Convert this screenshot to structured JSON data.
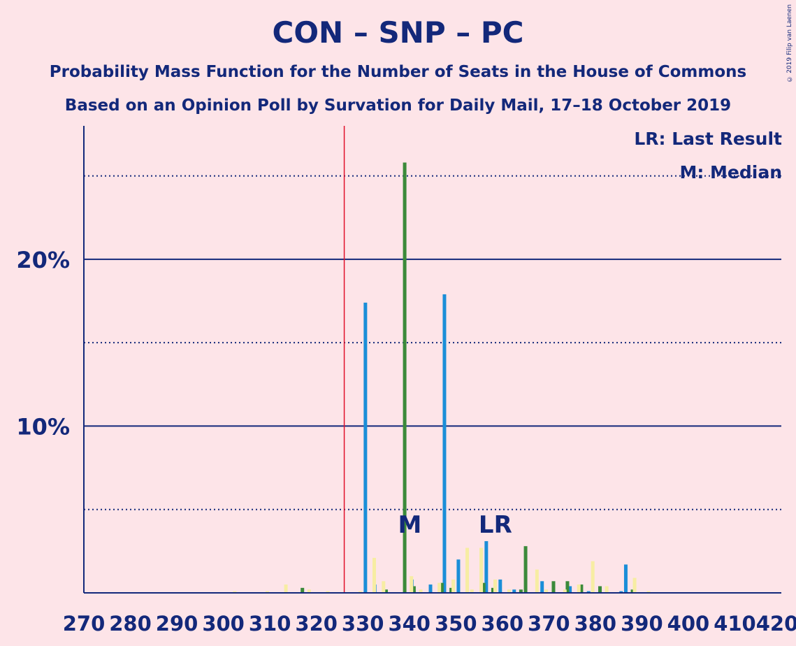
{
  "title": "CON – SNP – PC",
  "subtitle1": "Probability Mass Function for the Number of Seats in the House of Commons",
  "subtitle2": "Based on an Opinion Poll by Survation for Daily Mail, 17–18 October 2019",
  "copyright": "© 2019 Filip van Laenen",
  "legend": {
    "last_result": "LR: Last Result",
    "median": "M: Median"
  },
  "colors": {
    "background": "#fde4e8",
    "axis": "#13287a",
    "majority_line": "#e0102a",
    "blue": "#1a8ed8",
    "green": "#3b8a3a",
    "yellow": "#f7eda3"
  },
  "chart_data": {
    "type": "bar",
    "xlabel": "",
    "ylabel": "",
    "xlim": [
      270,
      420
    ],
    "ylim": [
      0,
      28
    ],
    "x_ticks": [
      270,
      280,
      290,
      300,
      310,
      320,
      330,
      340,
      350,
      360,
      370,
      380,
      390,
      400,
      410,
      420
    ],
    "y_ticks_labeled": [
      {
        "value": 10,
        "label": "10%"
      },
      {
        "value": 20,
        "label": "20%"
      }
    ],
    "y_gridlines_dotted": [
      5,
      15,
      25
    ],
    "y_gridlines_solid": [
      10,
      20
    ],
    "majority_line_x": 326,
    "annotations": [
      {
        "label": "M",
        "x": 338
      },
      {
        "label": "LR",
        "x": 357
      }
    ],
    "series": [
      {
        "name": "",
        "color": "blue",
        "points": [
          [
            331,
            17.4
          ],
          [
            333,
            0.5
          ],
          [
            341,
            0.8
          ],
          [
            345,
            0.5
          ],
          [
            348,
            17.9
          ],
          [
            351,
            2.0
          ],
          [
            357,
            3.1
          ],
          [
            360,
            0.8
          ],
          [
            363,
            0.2
          ],
          [
            369,
            0.7
          ],
          [
            375,
            0.4
          ],
          [
            379,
            0.1
          ],
          [
            386,
            0.1
          ],
          [
            387,
            1.7
          ]
        ]
      },
      {
        "name": "",
        "color": "green",
        "points": [
          [
            317,
            0.3
          ],
          [
            335,
            0.2
          ],
          [
            339,
            25.8
          ],
          [
            341,
            0.4
          ],
          [
            347,
            0.6
          ],
          [
            349,
            0.3
          ],
          [
            356,
            0.6
          ],
          [
            358,
            0.3
          ],
          [
            364,
            0.2
          ],
          [
            365,
            2.8
          ],
          [
            371,
            0.7
          ],
          [
            374,
            0.7
          ],
          [
            377,
            0.5
          ],
          [
            381,
            0.4
          ],
          [
            388,
            0.2
          ]
        ]
      },
      {
        "name": "",
        "color": "yellow",
        "points": [
          [
            302,
            0.1
          ],
          [
            309,
            0.1
          ],
          [
            313,
            0.5
          ],
          [
            318,
            0.2
          ],
          [
            322,
            0.1
          ],
          [
            329,
            0.1
          ],
          [
            332,
            2.1
          ],
          [
            334,
            0.7
          ],
          [
            340,
            1.0
          ],
          [
            342,
            0.2
          ],
          [
            346,
            0.6
          ],
          [
            349,
            0.8
          ],
          [
            352,
            2.7
          ],
          [
            353,
            0.2
          ],
          [
            355,
            2.7
          ],
          [
            358,
            0.8
          ],
          [
            361,
            0.2
          ],
          [
            367,
            1.4
          ],
          [
            369,
            0.2
          ],
          [
            373,
            0.2
          ],
          [
            376,
            0.5
          ],
          [
            379,
            1.9
          ],
          [
            382,
            0.4
          ],
          [
            388,
            0.9
          ],
          [
            391,
            0.1
          ]
        ]
      }
    ]
  }
}
